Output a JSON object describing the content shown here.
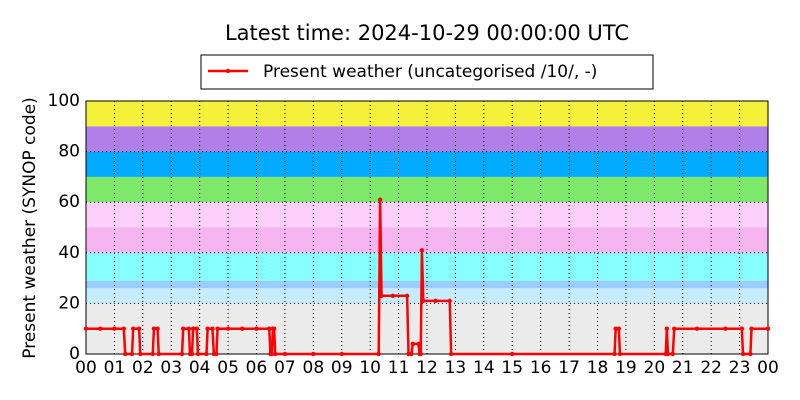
{
  "chart_data": {
    "type": "line",
    "title": "Latest time: 2024-10-29 00:00:00 UTC",
    "y_label": "Present weather (SYNOP code)",
    "x": [
      0,
      0.5,
      1,
      1.33,
      1.38,
      1.62,
      1.66,
      1.87,
      1.91,
      2.35,
      2.39,
      2.52,
      2.56,
      3.38,
      3.42,
      3.62,
      3.66,
      3.73,
      3.77,
      3.9,
      3.94,
      4.24,
      4.28,
      4.45,
      4.5,
      4.59,
      4.63,
      5,
      5.5,
      6,
      6.45,
      6.49,
      6.54,
      6.58,
      6.62,
      6.66,
      7,
      8,
      9,
      10.3,
      10.35,
      10.4,
      10.8,
      11.3,
      11.35,
      11.45,
      11.5,
      11.7,
      11.74,
      11.78,
      11.82,
      11.87,
      12.3,
      12.8,
      12.85,
      15,
      18.6,
      18.64,
      18.75,
      18.79,
      20.4,
      20.44,
      20.48,
      20.65,
      20.7,
      21.5,
      22.5,
      23.08,
      23.12,
      23.38,
      23.42,
      24
    ],
    "series": [
      {
        "name": "Present weather (uncategorised /10/, -)",
        "color": "#ff0000",
        "values": [
          10,
          10,
          10,
          10,
          0,
          0,
          10,
          10,
          0,
          0,
          10,
          10,
          0,
          0,
          10,
          10,
          0,
          0,
          10,
          10,
          0,
          0,
          10,
          10,
          0,
          0,
          10,
          10,
          10,
          10,
          10,
          0,
          0,
          10,
          10,
          0,
          0,
          0,
          0,
          0,
          61,
          23,
          23,
          23,
          0,
          0,
          4,
          4,
          0,
          0,
          41,
          21,
          21,
          21,
          0,
          0,
          0,
          10,
          10,
          0,
          0,
          10,
          0,
          0,
          10,
          10,
          10,
          10,
          0,
          0,
          10,
          10
        ]
      }
    ],
    "xlim": [
      0,
      24
    ],
    "xticks": [
      {
        "value": 0,
        "label": "00"
      },
      {
        "value": 1,
        "label": "01"
      },
      {
        "value": 2,
        "label": "02"
      },
      {
        "value": 3,
        "label": "03"
      },
      {
        "value": 4,
        "label": "04"
      },
      {
        "value": 5,
        "label": "05"
      },
      {
        "value": 6,
        "label": "06"
      },
      {
        "value": 7,
        "label": "07"
      },
      {
        "value": 8,
        "label": "08"
      },
      {
        "value": 9,
        "label": "09"
      },
      {
        "value": 10,
        "label": "10"
      },
      {
        "value": 11,
        "label": "11"
      },
      {
        "value": 12,
        "label": "12"
      },
      {
        "value": 13,
        "label": "13"
      },
      {
        "value": 14,
        "label": "14"
      },
      {
        "value": 15,
        "label": "15"
      },
      {
        "value": 16,
        "label": "16"
      },
      {
        "value": 17,
        "label": "17"
      },
      {
        "value": 18,
        "label": "18"
      },
      {
        "value": 19,
        "label": "19"
      },
      {
        "value": 20,
        "label": "20"
      },
      {
        "value": 21,
        "label": "21"
      },
      {
        "value": 22,
        "label": "22"
      },
      {
        "value": 23,
        "label": "23"
      },
      {
        "value": 24,
        "label": "00"
      }
    ],
    "ylim": [
      0,
      100
    ],
    "yticks": [
      0,
      20,
      40,
      60,
      80,
      100
    ],
    "grid": true,
    "bands": [
      {
        "from": 0,
        "to": 20,
        "color": "#ebebeb"
      },
      {
        "from": 20,
        "to": 26,
        "color": "#c6ecff"
      },
      {
        "from": 26,
        "to": 29,
        "color": "#99ccff"
      },
      {
        "from": 29,
        "to": 40,
        "color": "#88ffff"
      },
      {
        "from": 40,
        "to": 50,
        "color": "#f5b5f0"
      },
      {
        "from": 50,
        "to": 60,
        "color": "#fdd0fb"
      },
      {
        "from": 60,
        "to": 70,
        "color": "#7de86a"
      },
      {
        "from": 70,
        "to": 80,
        "color": "#00aaff"
      },
      {
        "from": 80,
        "to": 90,
        "color": "#b07fe8"
      },
      {
        "from": 90,
        "to": 100,
        "color": "#f5f03a"
      }
    ]
  }
}
